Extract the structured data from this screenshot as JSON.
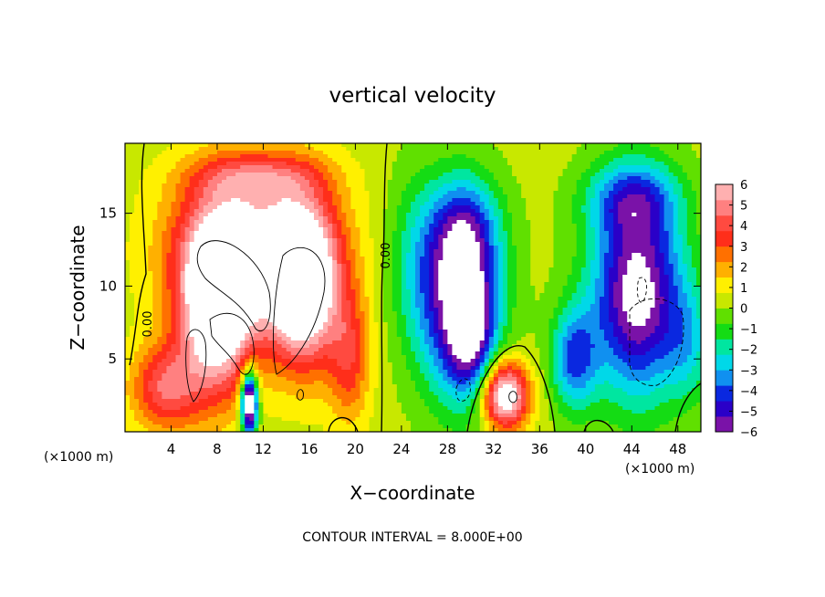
{
  "chart_data": {
    "type": "heatmap",
    "title": "vertical velocity",
    "xlabel": "X−coordinate",
    "ylabel": "Z−coordinate",
    "x_unit": "(×1000 m)",
    "y_unit": "(×1000 m)",
    "xlim": [
      0,
      50
    ],
    "ylim": [
      0,
      19.8
    ],
    "x_ticks": [
      4,
      8,
      12,
      16,
      20,
      24,
      28,
      32,
      36,
      40,
      44,
      48
    ],
    "x_tick_labels": [
      "4",
      "8",
      "12",
      "16",
      "20",
      "24",
      "28",
      "32",
      "36",
      "40",
      "44",
      "48"
    ],
    "y_ticks": [
      5,
      10,
      15
    ],
    "y_tick_labels": [
      "5",
      "10",
      "15"
    ],
    "colorbar": {
      "min": -6,
      "max": 6,
      "ticks": [
        6,
        5,
        4,
        3,
        2,
        1,
        0,
        -1,
        -2,
        -3,
        -4,
        -5,
        -6
      ],
      "tick_labels": [
        "6",
        "5",
        "4",
        "3",
        "2",
        "1",
        "0",
        "−1",
        "−2",
        "−3",
        "−4",
        "−5",
        "−6"
      ],
      "colors": [
        "#7a12a8",
        "#2a00c8",
        "#0a28e0",
        "#1090f0",
        "#00d8e8",
        "#00e6a0",
        "#14dc14",
        "#60e000",
        "#c8e800",
        "#fff000",
        "#ffb000",
        "#ff7000",
        "#ff2e1a",
        "#ff4a40",
        "#ff8080",
        "#ffb0b0"
      ]
    },
    "contour_labels": [
      "0.00",
      "0.00"
    ],
    "blobs": [
      {
        "x": 11,
        "z": 12.5,
        "wx": 6.8,
        "wz": 5.5,
        "amp": 5.5
      },
      {
        "x": 8,
        "z": 8.5,
        "wx": 3.2,
        "wz": 6,
        "amp": 7.5
      },
      {
        "x": 15.5,
        "z": 10,
        "wx": 3,
        "wz": 5.5,
        "amp": 7.5
      },
      {
        "x": 11.5,
        "z": 17.5,
        "wx": 5.5,
        "wz": 1.6,
        "amp": 2.5
      },
      {
        "x": 3.5,
        "z": 3,
        "wx": 3,
        "wz": 3,
        "amp": 4
      },
      {
        "x": 19.5,
        "z": 5,
        "wx": 1.8,
        "wz": 4.5,
        "amp": 3
      },
      {
        "x": 10.8,
        "z": 2,
        "wx": 0.7,
        "wz": 2.2,
        "amp": -9
      },
      {
        "x": 29,
        "z": 9,
        "wx": 3.5,
        "wz": 6.5,
        "amp": -6.5
      },
      {
        "x": 29.5,
        "z": 14,
        "wx": 3,
        "wz": 3.5,
        "amp": -3
      },
      {
        "x": 30,
        "z": 7,
        "wx": 1.8,
        "wz": 4,
        "amp": -3.5
      },
      {
        "x": 33,
        "z": 2.5,
        "wx": 2,
        "wz": 2.3,
        "amp": 7.5
      },
      {
        "x": 44.5,
        "z": 9.5,
        "wx": 4,
        "wz": 7,
        "amp": -7
      },
      {
        "x": 44,
        "z": 16,
        "wx": 4,
        "wz": 2.5,
        "amp": -3
      },
      {
        "x": 39,
        "z": 5,
        "wx": 2,
        "wz": 3.5,
        "amp": -4
      },
      {
        "x": 25,
        "z": 12,
        "wx": 2.5,
        "wz": 6,
        "amp": -1.5
      },
      {
        "x": 49,
        "z": 6,
        "wx": 2,
        "wz": 4,
        "amp": -2
      }
    ],
    "contour_interval_text": "CONTOUR INTERVAL = 8.000E+00"
  }
}
